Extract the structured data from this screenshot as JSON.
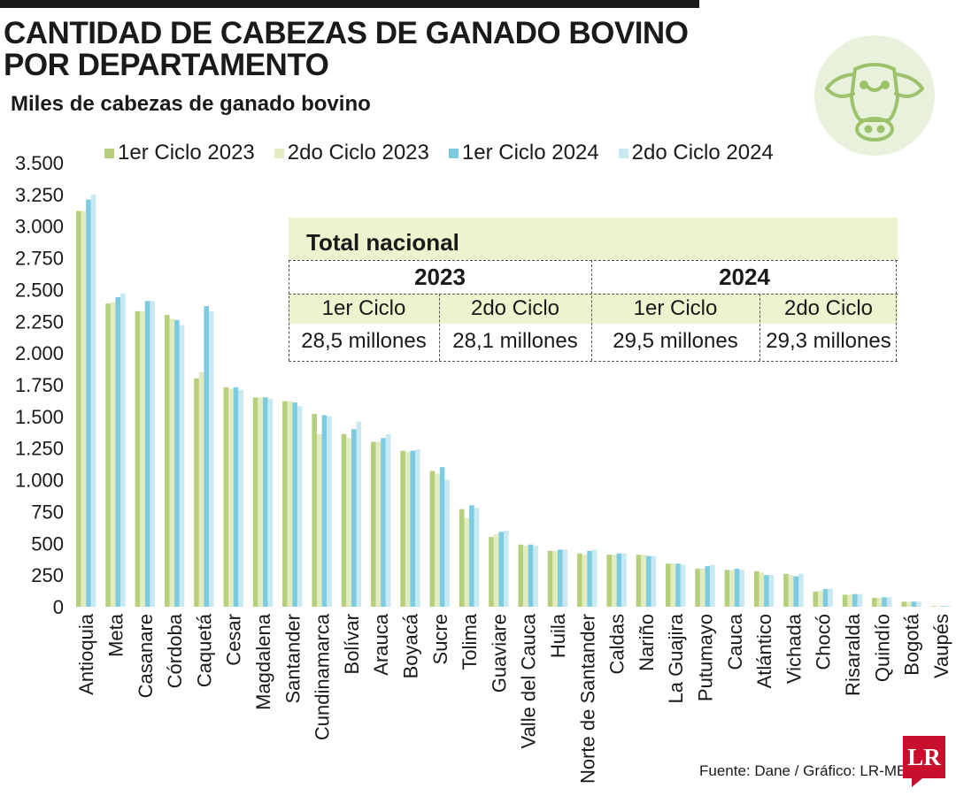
{
  "header": {
    "title_line1": "CANTIDAD DE CABEZAS DE GANADO BOVINO",
    "title_line2": "POR DEPARTAMENTO",
    "subtitle": "Miles de cabezas de ganado bovino"
  },
  "colors": {
    "series1": "#b5cf7c",
    "series2": "#e3ecc0",
    "series3": "#7dcbe0",
    "series4": "#c8e8f2",
    "table_fill": "#eef2cf",
    "icon_bg": "#e8f1dc",
    "icon_stroke": "#9cc36b",
    "logo": "#c8102e"
  },
  "icon": "cow-head-icon",
  "total_nacional": {
    "title": "Total nacional",
    "years": [
      {
        "label": "2023",
        "cycles": [
          {
            "label": "1er Ciclo",
            "value": "28,5 millones"
          },
          {
            "label": "2do Ciclo",
            "value": "28,1 millones"
          }
        ]
      },
      {
        "label": "2024",
        "cycles": [
          {
            "label": "1er Ciclo",
            "value": "29,5 millones"
          },
          {
            "label": "2do Ciclo",
            "value": "29,3 millones"
          }
        ]
      }
    ]
  },
  "source": "Fuente: Dane / Gráfico: LR-MB",
  "logo_text": "LR",
  "chart_data": {
    "type": "bar",
    "title": "CANTIDAD DE CABEZAS DE GANADO BOVINO POR DEPARTAMENTO",
    "ylabel": "Miles de cabezas de ganado bovino",
    "ylim": [
      0,
      3500
    ],
    "yticks": [
      0,
      250,
      500,
      750,
      1000,
      1250,
      1500,
      1750,
      2000,
      2250,
      2500,
      2750,
      3000,
      3250,
      3500
    ],
    "ytick_labels": [
      "0",
      "250",
      "500",
      "750",
      "1.000",
      "1.250",
      "1.500",
      "1.750",
      "2.000",
      "2.250",
      "2.500",
      "2.750",
      "3.000",
      "3.250",
      "3.500"
    ],
    "legend_position": "top",
    "grid": false,
    "categories": [
      "Antioquia",
      "Meta",
      "Casanare",
      "Córdoba",
      "Caquetá",
      "Cesar",
      "Magdalena",
      "Santander",
      "Cundinamarca",
      "Bolívar",
      "Arauca",
      "Boyacá",
      "Sucre",
      "Tolima",
      "Guaviare",
      "Valle del Cauca",
      "Huila",
      "Norte de Santander",
      "Caldas",
      "Nariño",
      "La Guajira",
      "Putumayo",
      "Cauca",
      "Atlántico",
      "Vichada",
      "Chocó",
      "Risaralda",
      "Quindío",
      "Bogotá",
      "Vaupés"
    ],
    "series": [
      {
        "name": "1er Ciclo 2023",
        "values": [
          3120,
          2390,
          2330,
          2300,
          1800,
          1730,
          1650,
          1620,
          1520,
          1360,
          1300,
          1230,
          1070,
          770,
          550,
          490,
          440,
          420,
          410,
          410,
          340,
          300,
          290,
          280,
          260,
          120,
          95,
          70,
          40,
          5
        ]
      },
      {
        "name": "2do Ciclo 2023",
        "values": [
          3120,
          2400,
          2330,
          2270,
          1850,
          1720,
          1650,
          1620,
          1360,
          1330,
          1300,
          1220,
          1050,
          700,
          570,
          480,
          440,
          410,
          410,
          410,
          340,
          300,
          290,
          270,
          250,
          125,
          95,
          70,
          40,
          5
        ]
      },
      {
        "name": "1er Ciclo 2024",
        "values": [
          3210,
          2440,
          2410,
          2260,
          2370,
          1730,
          1650,
          1610,
          1510,
          1400,
          1330,
          1230,
          1100,
          800,
          590,
          490,
          450,
          440,
          420,
          400,
          340,
          320,
          300,
          250,
          240,
          140,
          100,
          75,
          40,
          5
        ]
      },
      {
        "name": "2do Ciclo 2024",
        "values": [
          3250,
          2470,
          2410,
          2220,
          2330,
          1710,
          1640,
          1580,
          1500,
          1460,
          1360,
          1240,
          1000,
          780,
          600,
          480,
          450,
          450,
          420,
          400,
          330,
          330,
          290,
          250,
          260,
          140,
          100,
          75,
          40,
          5
        ]
      }
    ]
  }
}
